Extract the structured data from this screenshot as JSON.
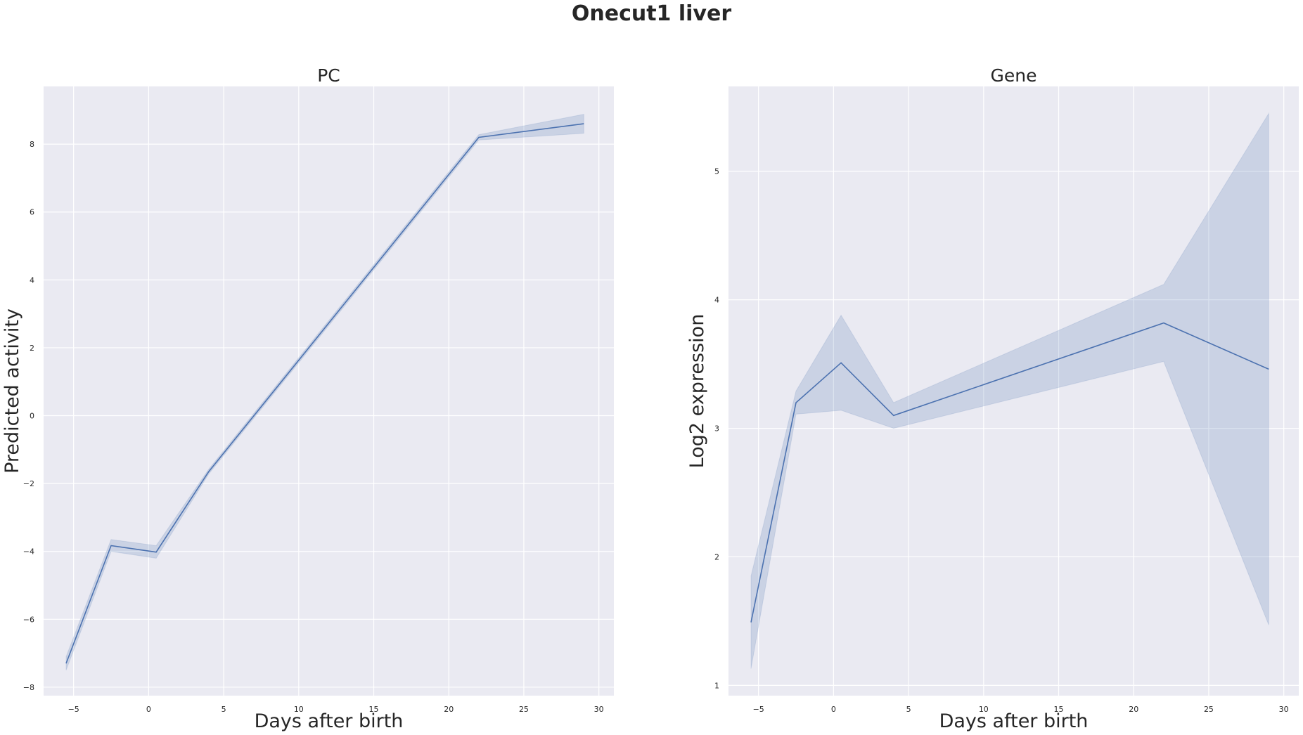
{
  "figure": {
    "title": "Onecut1 liver"
  },
  "chart_data": [
    {
      "type": "line",
      "title": "PC",
      "xlabel": "Days after birth",
      "ylabel": "Predicted activity",
      "xlim": [
        -7,
        31
      ],
      "ylim": [
        -8.25,
        9.7
      ],
      "xticks": [
        -5,
        0,
        5,
        10,
        15,
        20,
        25,
        30
      ],
      "xtick_labels": [
        "−5",
        "0",
        "5",
        "10",
        "15",
        "20",
        "25",
        "30"
      ],
      "yticks": [
        -8,
        -6,
        -4,
        -2,
        0,
        2,
        4,
        6,
        8
      ],
      "ytick_labels": [
        "−8",
        "−6",
        "−4",
        "−2",
        "0",
        "2",
        "4",
        "6",
        "8"
      ],
      "grid": true,
      "series": [
        {
          "x": [
            -5.5,
            -2.5,
            0.5,
            4,
            22,
            29
          ],
          "y": [
            -7.3,
            -3.83,
            -4.02,
            -1.65,
            8.2,
            8.6
          ],
          "ci_lower": [
            -7.5,
            -4.0,
            -4.2,
            -1.72,
            8.12,
            8.32
          ],
          "ci_upper": [
            -7.1,
            -3.65,
            -3.83,
            -1.58,
            8.28,
            8.88
          ]
        }
      ],
      "colors": {
        "line": "#4c72b0",
        "band": "#4c72b0",
        "background": "#eaeaf2",
        "grid": "#ffffff"
      }
    },
    {
      "type": "line",
      "title": "Gene",
      "xlabel": "Days after birth",
      "ylabel": "Log2 expression",
      "xlim": [
        -7,
        31
      ],
      "ylim": [
        0.92,
        5.66
      ],
      "xticks": [
        -5,
        0,
        5,
        10,
        15,
        20,
        25,
        30
      ],
      "xtick_labels": [
        "−5",
        "0",
        "5",
        "10",
        "15",
        "20",
        "25",
        "30"
      ],
      "yticks": [
        1,
        2,
        3,
        4,
        5
      ],
      "ytick_labels": [
        "1",
        "2",
        "3",
        "4",
        "5"
      ],
      "grid": true,
      "series": [
        {
          "x": [
            -5.5,
            -2.5,
            0.5,
            4,
            22,
            29
          ],
          "y": [
            1.49,
            3.2,
            3.51,
            3.1,
            3.82,
            3.46
          ],
          "ci_lower": [
            1.13,
            3.11,
            3.14,
            3.0,
            3.52,
            1.47
          ],
          "ci_upper": [
            1.85,
            3.29,
            3.88,
            3.2,
            4.12,
            5.45
          ]
        }
      ],
      "colors": {
        "line": "#4c72b0",
        "band": "#4c72b0",
        "background": "#eaeaf2",
        "grid": "#ffffff"
      }
    }
  ]
}
